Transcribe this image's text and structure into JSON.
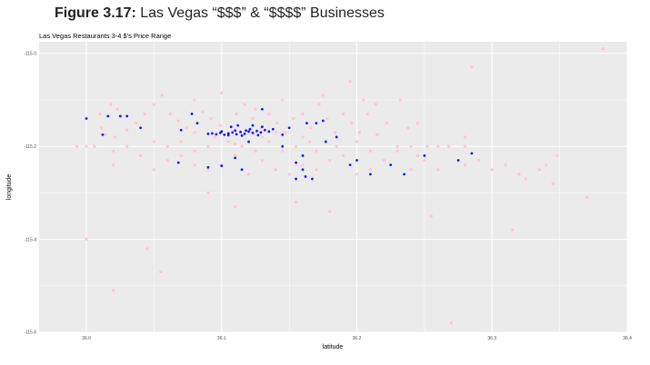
{
  "figure": {
    "label": "Figure 3.17:",
    "text": " Las Vegas “$$$” & “$$$$” Businesses"
  },
  "colors": {
    "panel": "#ebebeb",
    "grid": "#ffffff",
    "low_price": "#ffc0cb",
    "high_price": "#0000ff"
  },
  "chart_data": {
    "type": "scatter",
    "title": "Las Vegas Restaurants 3-4 $'s Price Range",
    "xlabel": "latitude",
    "ylabel": "longitude",
    "xlim": [
      35.965,
      36.4
    ],
    "ylim": [
      -115.6,
      -114.975
    ],
    "grid": true,
    "x_ticks": [
      36.0,
      36.1,
      36.2,
      36.3,
      36.4
    ],
    "x_tick_labels": [
      "36.0",
      "36.1",
      "36.2",
      "36.3",
      "36.4"
    ],
    "y_ticks": [
      -115.0,
      -115.2,
      -115.4,
      -115.6
    ],
    "y_tick_labels": [
      "-115.0",
      "-115.2",
      "-115.4",
      "-115.6"
    ],
    "series": [
      {
        "color": "#ffc0cb",
        "points": [
          [
            36.382,
            -114.99
          ],
          [
            36.018,
            -115.11
          ],
          [
            36.023,
            -115.12
          ],
          [
            36.026,
            -115.135
          ],
          [
            36.011,
            -115.16
          ],
          [
            36.01,
            -115.13
          ],
          [
            35.993,
            -115.2
          ],
          [
            36.0,
            -115.2
          ],
          [
            36.006,
            -115.2
          ],
          [
            36.014,
            -115.175
          ],
          [
            36.021,
            -115.18
          ],
          [
            36.03,
            -115.165
          ],
          [
            36.037,
            -115.15
          ],
          [
            36.043,
            -115.13
          ],
          [
            36.05,
            -115.11
          ],
          [
            36.056,
            -115.09
          ],
          [
            36.062,
            -115.13
          ],
          [
            36.068,
            -115.145
          ],
          [
            36.074,
            -115.16
          ],
          [
            36.08,
            -115.17
          ],
          [
            36.086,
            -115.125
          ],
          [
            36.092,
            -115.14
          ],
          [
            36.099,
            -115.155
          ],
          [
            36.105,
            -115.175
          ],
          [
            36.111,
            -115.13
          ],
          [
            36.117,
            -115.11
          ],
          [
            36.123,
            -115.14
          ],
          [
            36.129,
            -115.16
          ],
          [
            36.135,
            -115.13
          ],
          [
            36.141,
            -115.15
          ],
          [
            36.147,
            -115.17
          ],
          [
            36.153,
            -115.14
          ],
          [
            36.16,
            -115.13
          ],
          [
            36.166,
            -115.16
          ],
          [
            36.172,
            -115.11
          ],
          [
            36.178,
            -115.14
          ],
          [
            36.184,
            -115.17
          ],
          [
            36.19,
            -115.13
          ],
          [
            36.196,
            -115.15
          ],
          [
            36.202,
            -115.17
          ],
          [
            36.208,
            -115.13
          ],
          [
            36.214,
            -115.11
          ],
          [
            36.222,
            -115.15
          ],
          [
            36.232,
            -115.1
          ],
          [
            36.238,
            -115.16
          ],
          [
            36.245,
            -115.15
          ],
          [
            36.252,
            -115.2
          ],
          [
            36.26,
            -115.2
          ],
          [
            36.268,
            -115.2
          ],
          [
            36.28,
            -115.2
          ],
          [
            36.29,
            -115.23
          ],
          [
            36.3,
            -115.25
          ],
          [
            36.31,
            -115.24
          ],
          [
            36.32,
            -115.26
          ],
          [
            36.28,
            -115.18
          ],
          [
            36.325,
            -115.27
          ],
          [
            36.335,
            -115.25
          ],
          [
            36.34,
            -115.24
          ],
          [
            36.348,
            -115.22
          ],
          [
            36.345,
            -115.28
          ],
          [
            36.28,
            -115.24
          ],
          [
            36.02,
            -115.21
          ],
          [
            36.02,
            -115.24
          ],
          [
            36.03,
            -115.2
          ],
          [
            36.04,
            -115.22
          ],
          [
            36.05,
            -115.25
          ],
          [
            36.06,
            -115.23
          ],
          [
            36.07,
            -115.22
          ],
          [
            36.08,
            -115.24
          ],
          [
            36.09,
            -115.25
          ],
          [
            36.1,
            -115.24
          ],
          [
            36.11,
            -115.22
          ],
          [
            36.12,
            -115.26
          ],
          [
            36.13,
            -115.23
          ],
          [
            36.14,
            -115.25
          ],
          [
            36.15,
            -115.26
          ],
          [
            36.16,
            -115.24
          ],
          [
            36.17,
            -115.25
          ],
          [
            36.18,
            -115.23
          ],
          [
            36.19,
            -115.22
          ],
          [
            36.2,
            -115.26
          ],
          [
            36.21,
            -115.25
          ],
          [
            36.22,
            -115.23
          ],
          [
            36.23,
            -115.21
          ],
          [
            36.24,
            -115.25
          ],
          [
            36.25,
            -115.23
          ],
          [
            36.26,
            -115.25
          ],
          [
            36.045,
            -115.42
          ],
          [
            36.0,
            -115.4
          ],
          [
            36.02,
            -115.51
          ],
          [
            36.055,
            -115.47
          ],
          [
            36.09,
            -115.3
          ],
          [
            36.11,
            -115.33
          ],
          [
            36.155,
            -115.32
          ],
          [
            36.18,
            -115.34
          ],
          [
            36.285,
            -115.03
          ],
          [
            36.255,
            -115.35
          ],
          [
            36.27,
            -115.58
          ],
          [
            36.315,
            -115.38
          ],
          [
            36.37,
            -115.31
          ],
          [
            36.08,
            -115.1
          ],
          [
            36.1,
            -115.085
          ],
          [
            36.125,
            -115.12
          ],
          [
            36.145,
            -115.1
          ],
          [
            36.175,
            -115.09
          ],
          [
            36.205,
            -115.1
          ],
          [
            36.195,
            -115.06
          ],
          [
            36.215,
            -115.175
          ],
          [
            36.05,
            -115.19
          ],
          [
            36.06,
            -115.2
          ],
          [
            36.07,
            -115.19
          ],
          [
            36.08,
            -115.21
          ],
          [
            36.09,
            -115.2
          ],
          [
            36.11,
            -115.195
          ],
          [
            36.125,
            -115.21
          ],
          [
            36.135,
            -115.19
          ],
          [
            36.145,
            -115.21
          ],
          [
            36.155,
            -115.2
          ],
          [
            36.165,
            -115.19
          ],
          [
            36.17,
            -115.21
          ],
          [
            36.185,
            -115.2
          ],
          [
            36.2,
            -115.19
          ],
          [
            36.21,
            -115.21
          ],
          [
            36.23,
            -115.2
          ],
          [
            36.24,
            -115.2
          ],
          [
            36.245,
            -115.22
          ],
          [
            36.095,
            -115.18
          ],
          [
            36.105,
            -115.19
          ],
          [
            36.115,
            -115.2
          ],
          [
            36.13,
            -115.18
          ],
          [
            36.14,
            -115.17
          ],
          [
            36.16,
            -115.18
          ]
        ]
      },
      {
        "color": "#0000ff",
        "points": [
          [
            36.09,
            -115.173
          ],
          [
            36.093,
            -115.172
          ],
          [
            36.096,
            -115.174
          ],
          [
            36.099,
            -115.171
          ],
          [
            36.102,
            -115.175
          ],
          [
            36.105,
            -115.172
          ],
          [
            36.108,
            -115.17
          ],
          [
            36.111,
            -115.174
          ],
          [
            36.114,
            -115.169
          ],
          [
            36.117,
            -115.173
          ],
          [
            36.12,
            -115.168
          ],
          [
            36.123,
            -115.171
          ],
          [
            36.126,
            -115.167
          ],
          [
            36.129,
            -115.17
          ],
          [
            36.132,
            -115.165
          ],
          [
            36.135,
            -115.168
          ],
          [
            36.105,
            -115.176
          ],
          [
            36.11,
            -115.166
          ],
          [
            36.115,
            -115.177
          ],
          [
            36.121,
            -115.163
          ],
          [
            36.127,
            -115.176
          ],
          [
            36.1,
            -115.168
          ],
          [
            36.118,
            -115.166
          ],
          [
            36.13,
            -115.158
          ],
          [
            36.123,
            -115.155
          ],
          [
            36.138,
            -115.163
          ],
          [
            36.107,
            -115.158
          ],
          [
            36.112,
            -115.155
          ],
          [
            36.016,
            -115.135
          ],
          [
            36.025,
            -115.135
          ],
          [
            36.03,
            -115.135
          ],
          [
            36.012,
            -115.175
          ],
          [
            36.07,
            -115.165
          ],
          [
            36.082,
            -115.15
          ],
          [
            36.068,
            -115.235
          ],
          [
            36.09,
            -115.245
          ],
          [
            36.1,
            -115.242
          ],
          [
            36.11,
            -115.225
          ],
          [
            36.115,
            -115.25
          ],
          [
            36.13,
            -115.12
          ],
          [
            36.145,
            -115.2
          ],
          [
            36.155,
            -115.235
          ],
          [
            36.16,
            -115.22
          ],
          [
            36.16,
            -115.25
          ],
          [
            36.162,
            -115.265
          ],
          [
            36.167,
            -115.27
          ],
          [
            36.155,
            -115.27
          ],
          [
            36.17,
            -115.15
          ],
          [
            36.175,
            -115.145
          ],
          [
            36.177,
            -115.19
          ],
          [
            36.163,
            -115.15
          ],
          [
            36.195,
            -115.24
          ],
          [
            36.2,
            -115.23
          ],
          [
            36.21,
            -115.26
          ],
          [
            36.225,
            -115.24
          ],
          [
            36.235,
            -115.26
          ],
          [
            36.25,
            -115.22
          ],
          [
            36.275,
            -115.23
          ],
          [
            36.285,
            -115.215
          ],
          [
            36.0,
            -115.14
          ],
          [
            36.04,
            -115.16
          ],
          [
            36.078,
            -115.13
          ],
          [
            36.12,
            -115.19
          ],
          [
            36.145,
            -115.175
          ],
          [
            36.15,
            -115.16
          ],
          [
            36.185,
            -115.18
          ]
        ]
      }
    ]
  }
}
